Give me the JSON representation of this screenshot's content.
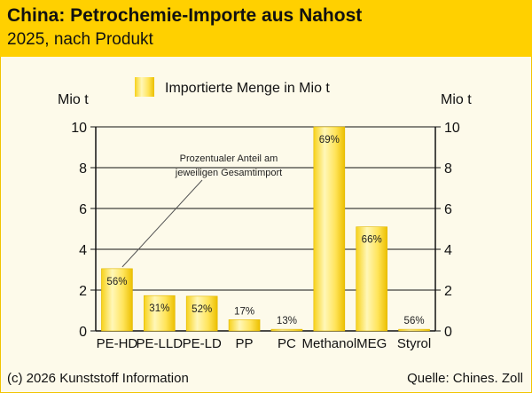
{
  "header": {
    "title": "China: Petrochemie-Importe aus Nahost",
    "subtitle": "2025, nach Produkt"
  },
  "footer": {
    "credit": "(c) 2026 Kunststoff Information",
    "source": "Quelle: Chines. Zoll"
  },
  "colors": {
    "header_bg": "#ffd000",
    "plot_bg": "#fdfaea",
    "bar_light": "#fff6b0",
    "bar_dark": "#f0c400"
  },
  "chart_data": {
    "type": "bar",
    "categories": [
      "PE-HD",
      "PE-LLD",
      "PE-LD",
      "PP",
      "PC",
      "Methanol",
      "MEG",
      "Styrol"
    ],
    "series": [
      {
        "name": "Importierte Menge in Mio t",
        "values": [
          3.05,
          1.73,
          1.7,
          0.55,
          0.08,
          10.0,
          5.1,
          0.08
        ]
      }
    ],
    "share_labels": [
      "56%",
      "31%",
      "52%",
      "17%",
      "13%",
      "69%",
      "66%",
      "56%"
    ],
    "ylabel_left": "Mio t",
    "ylabel_right": "Mio t",
    "ylim": [
      0,
      10
    ],
    "yticks": [
      0,
      2,
      4,
      6,
      8,
      10
    ],
    "legend": "top-center",
    "annotation": {
      "lines": [
        "Prozentualer Anteil am",
        "jeweiligen Gesamtimport"
      ],
      "points_to": "PE-HD"
    }
  }
}
